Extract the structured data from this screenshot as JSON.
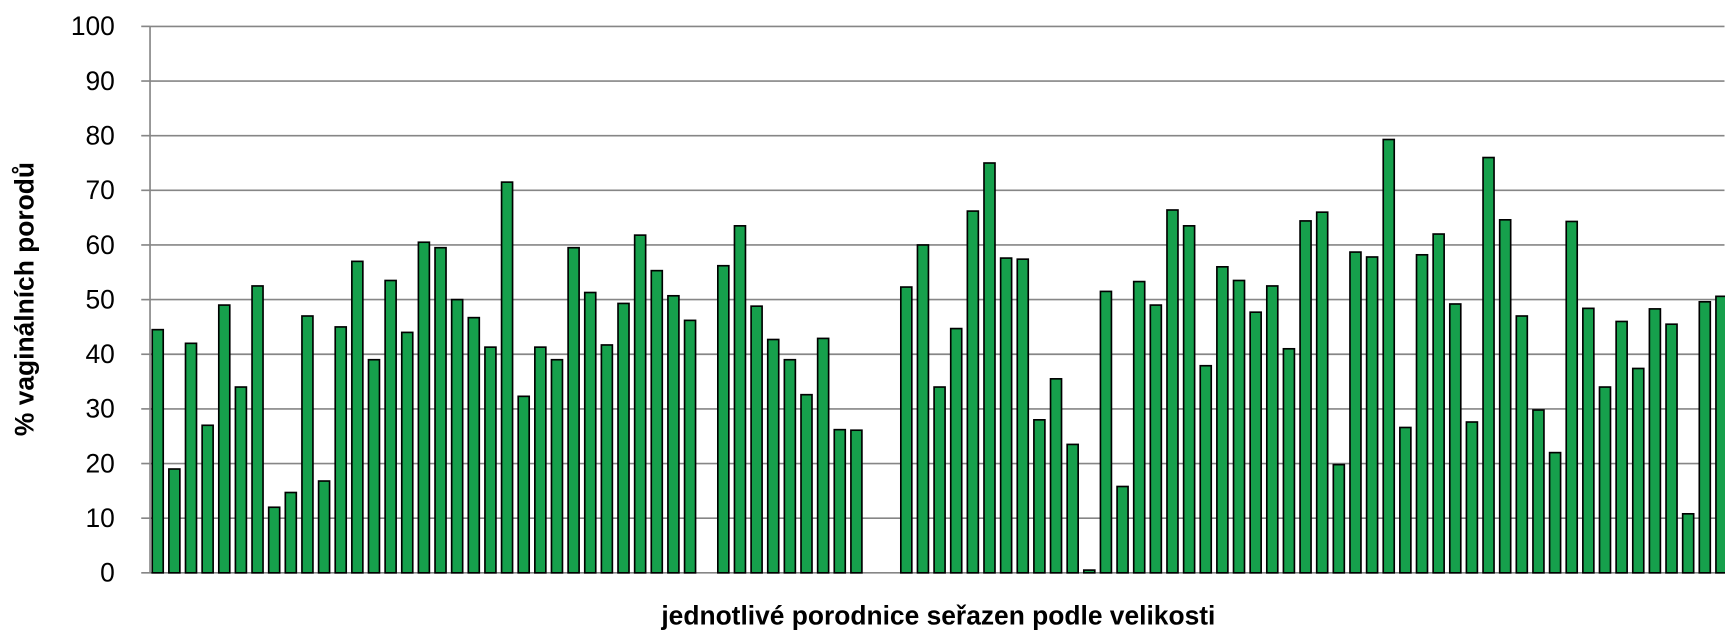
{
  "chart_data": {
    "type": "bar",
    "x_label": "jednotlivé porodnice seřazen podle velikosti",
    "y_label": "% vaginálních porodů",
    "values": [
      44.5,
      19,
      42,
      27,
      49,
      34,
      52.5,
      12,
      14.7,
      47,
      16.8,
      45,
      57,
      39,
      53.5,
      44,
      60.5,
      59.5,
      50,
      46.7,
      41.3,
      71.5,
      32.3,
      41.3,
      39,
      59.5,
      51.3,
      41.7,
      49.3,
      61.8,
      55.3,
      50.7,
      46.2,
      null,
      56.2,
      63.5,
      48.8,
      42.7,
      39,
      32.6,
      42.9,
      26.2,
      26.1,
      null,
      null,
      52.3,
      60,
      34,
      44.7,
      66.2,
      75,
      57.6,
      57.4,
      28,
      35.5,
      23.5,
      0.5,
      51.5,
      15.8,
      53.3,
      49,
      66.4,
      63.5,
      37.9,
      56,
      53.5,
      47.7,
      52.5,
      41,
      64.4,
      66,
      19.8,
      58.7,
      57.8,
      79.3,
      26.6,
      58.2,
      62,
      49.2,
      27.6,
      76,
      64.6,
      47,
      29.8,
      22,
      64.3,
      48.4,
      34,
      46,
      37.4,
      48.3,
      45.5,
      10.8,
      49.6,
      50.6
    ],
    "color": "#16a04c",
    "ylim": [
      0,
      100
    ],
    "yticks": [
      0,
      10,
      20,
      30,
      40,
      50,
      60,
      70,
      80,
      90,
      100
    ],
    "grid": true
  }
}
